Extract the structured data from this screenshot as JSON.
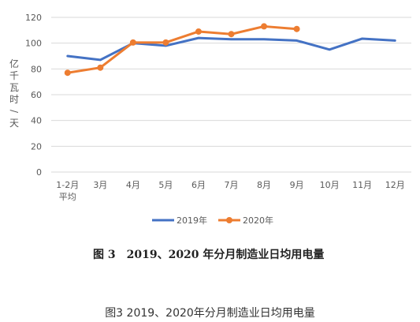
{
  "chart_data": {
    "type": "line",
    "categories": [
      [
        "1-2月",
        "平均"
      ],
      [
        "3月"
      ],
      [
        "4月"
      ],
      [
        "5月"
      ],
      [
        "6月"
      ],
      [
        "7月"
      ],
      [
        "8月"
      ],
      [
        "9月"
      ],
      [
        "10月"
      ],
      [
        "11月"
      ],
      [
        "12月"
      ]
    ],
    "series": [
      {
        "name": "2019年",
        "color": "#4472C4",
        "values": [
          90,
          87,
          100,
          98,
          104,
          103,
          103,
          102,
          95,
          103.5,
          102
        ]
      },
      {
        "name": "2020年",
        "color": "#ED7D31",
        "values": [
          77,
          81,
          100.5,
          100.5,
          109,
          107,
          113,
          111,
          null,
          null,
          null
        ]
      }
    ],
    "ylabel": "亿千瓦时/天",
    "yticks": [
      "0",
      "20",
      "40",
      "60",
      "80",
      "100",
      "120"
    ],
    "ylim": [
      0,
      120
    ],
    "grid": true,
    "legend": "bottom"
  },
  "figure_caption": "图 3　2019、2020 年分月制造业日均用电量",
  "bottom_caption": "图3 2019、2020年分月制造业日均用电量"
}
